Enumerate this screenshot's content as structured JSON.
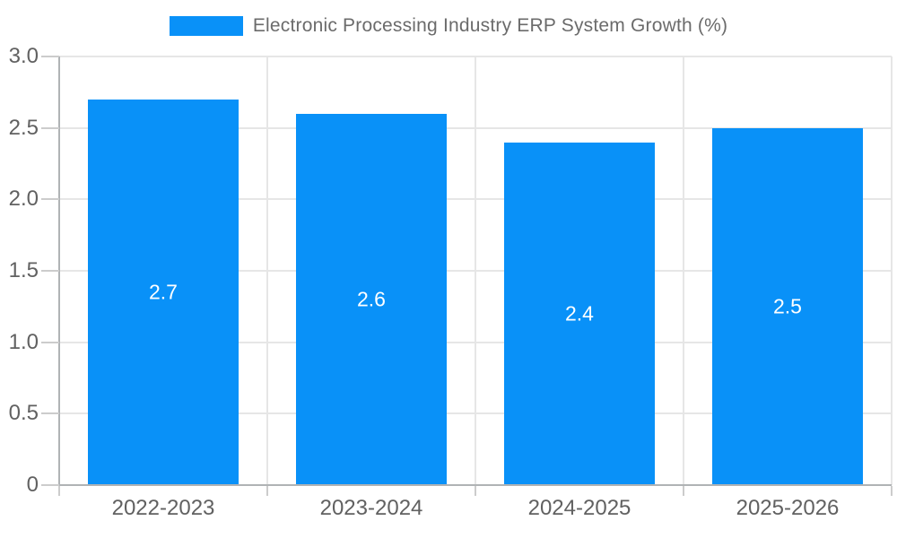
{
  "chart_data": {
    "type": "bar",
    "title": "Electronic Processing Industry ERP System Growth (%)",
    "legend": {
      "label": "Electronic Processing Industry ERP System Growth (%)",
      "position": "top"
    },
    "categories": [
      "2022-2023",
      "2023-2024",
      "2024-2025",
      "2025-2026"
    ],
    "series": [
      {
        "name": "Electronic Processing Industry ERP System Growth (%)",
        "values": [
          2.7,
          2.6,
          2.4,
          2.5
        ],
        "value_labels": [
          "2.7",
          "2.6",
          "2.4",
          "2.5"
        ]
      }
    ],
    "xlabel": "",
    "ylabel": "",
    "ylim": [
      0,
      3.0
    ],
    "grid": true,
    "y_ticks": [
      {
        "value": 0,
        "label": "0"
      },
      {
        "value": 0.5,
        "label": "0.5"
      },
      {
        "value": 1.0,
        "label": "1.0"
      },
      {
        "value": 1.5,
        "label": "1.5"
      },
      {
        "value": 2.0,
        "label": "2.0"
      },
      {
        "value": 2.5,
        "label": "2.5"
      },
      {
        "value": 3.0,
        "label": "3.0"
      }
    ],
    "colors": {
      "bar": "#0991f8",
      "gridline": "#e6e6e6",
      "axis_line": "#b0b3b5",
      "tick": "#cccccc",
      "axis_text": "#616161",
      "legend_text": "#6b6b6b",
      "value_text": "#ffffff",
      "background": "#ffffff"
    }
  }
}
